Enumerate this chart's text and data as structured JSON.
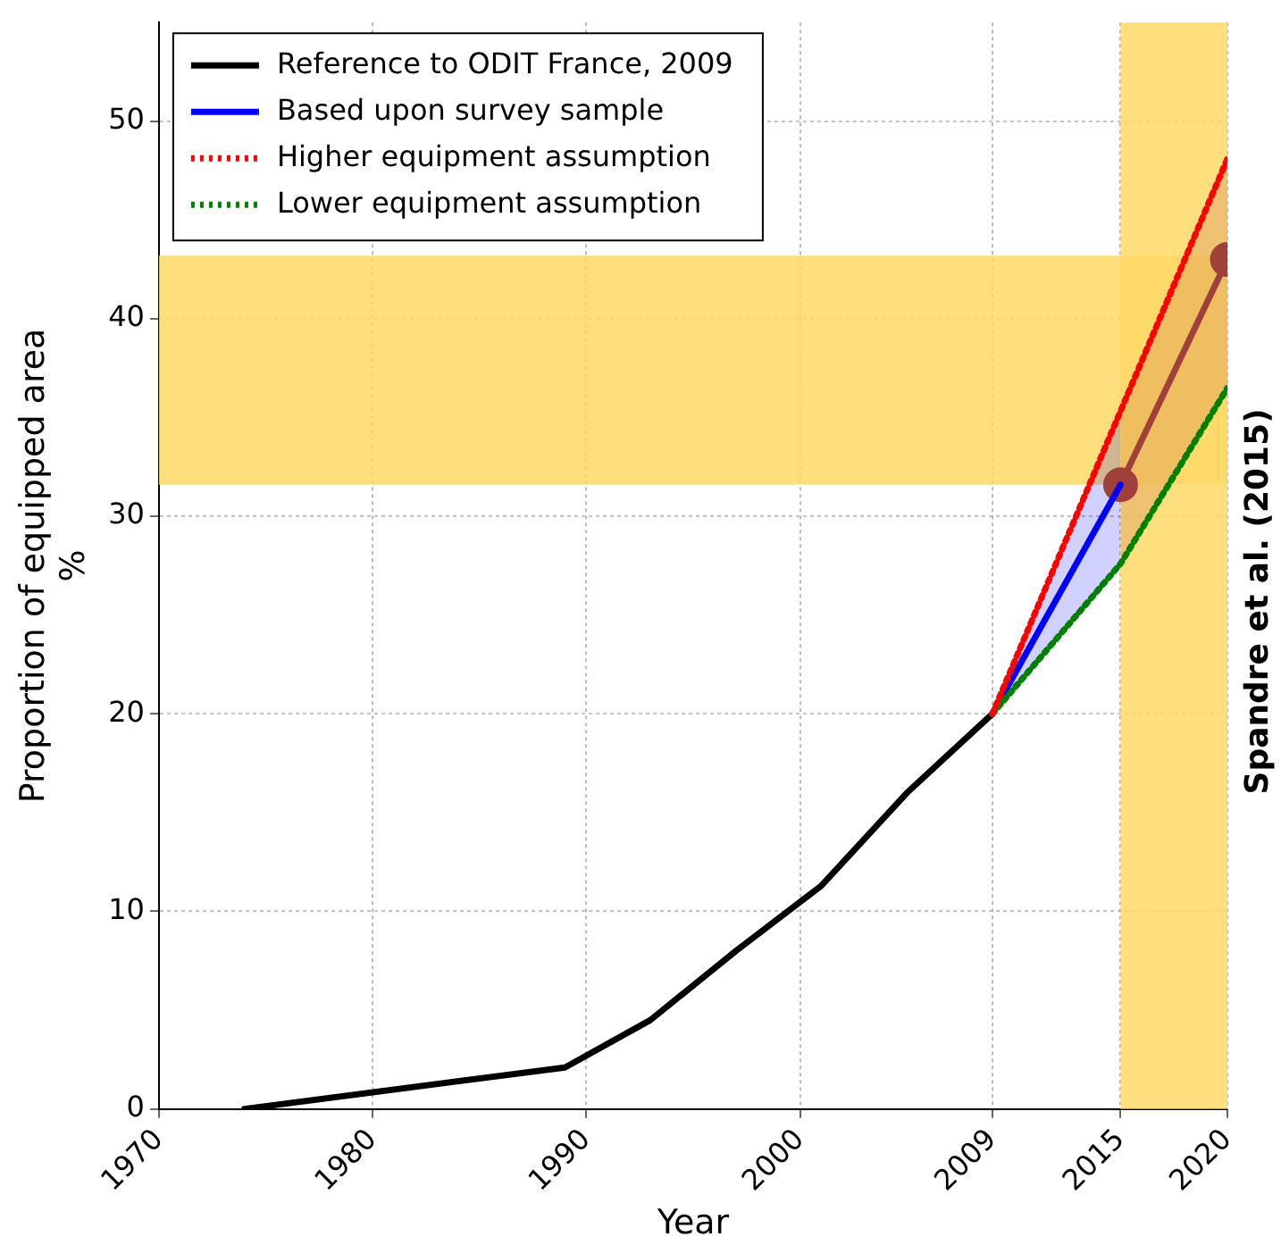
{
  "chart_data": {
    "type": "line",
    "xlabel": "Year",
    "ylabel": "Proportion of equipped area\n%",
    "xlim": [
      1970,
      2020
    ],
    "xticks": [
      1970,
      1980,
      1990,
      2000,
      2009,
      2015,
      2020
    ],
    "ylim": [
      0,
      55
    ],
    "yticks": [
      0,
      10,
      20,
      30,
      40,
      50
    ],
    "grid": true,
    "legend": "top left",
    "marker": "none",
    "line_style": "solid",
    "series": [
      {
        "name": "Reference to ODIT France, 2009",
        "color": "#000000",
        "x": [
          1974,
          1989,
          1993,
          1997,
          2001,
          2005,
          2009
        ],
        "values": [
          0,
          2.1,
          4.5,
          8,
          11.3,
          16,
          20
        ]
      },
      {
        "name": "Based upon survey sample",
        "color": "#0000ff",
        "x": [
          2009,
          2015
        ],
        "values": [
          20,
          31.6
        ],
        "lower": [
          20,
          27.6
        ],
        "upper": [
          20,
          35.2
        ]
      },
      {
        "name": "Higher equipment assumption",
        "color": "#ff0000",
        "line_style": "dotted",
        "x": [
          2009,
          2020
        ],
        "values": [
          20,
          48.1
        ]
      },
      {
        "name": "Lower equipment assumption",
        "color": "#008000",
        "line_style": "dotted",
        "x": [
          2009,
          2015,
          2020
        ],
        "values": [
          20,
          27.6,
          36.5
        ]
      },
      {
        "color": "#a0403a",
        "marker": "circle",
        "x": [
          2015,
          2020
        ],
        "values": [
          31.6,
          43
        ],
        "lower": [
          27.6,
          36.5
        ],
        "upper": [
          35.2,
          48.1
        ]
      }
    ],
    "bands": [
      {
        "axis": "y",
        "from": 31.6,
        "to": 43.2,
        "color": "#ffd966"
      },
      {
        "axis": "x",
        "from": 2015,
        "to": 2020,
        "color": "#ffd966"
      }
    ],
    "annotations": [
      "Spandre et al. (2015)"
    ]
  }
}
